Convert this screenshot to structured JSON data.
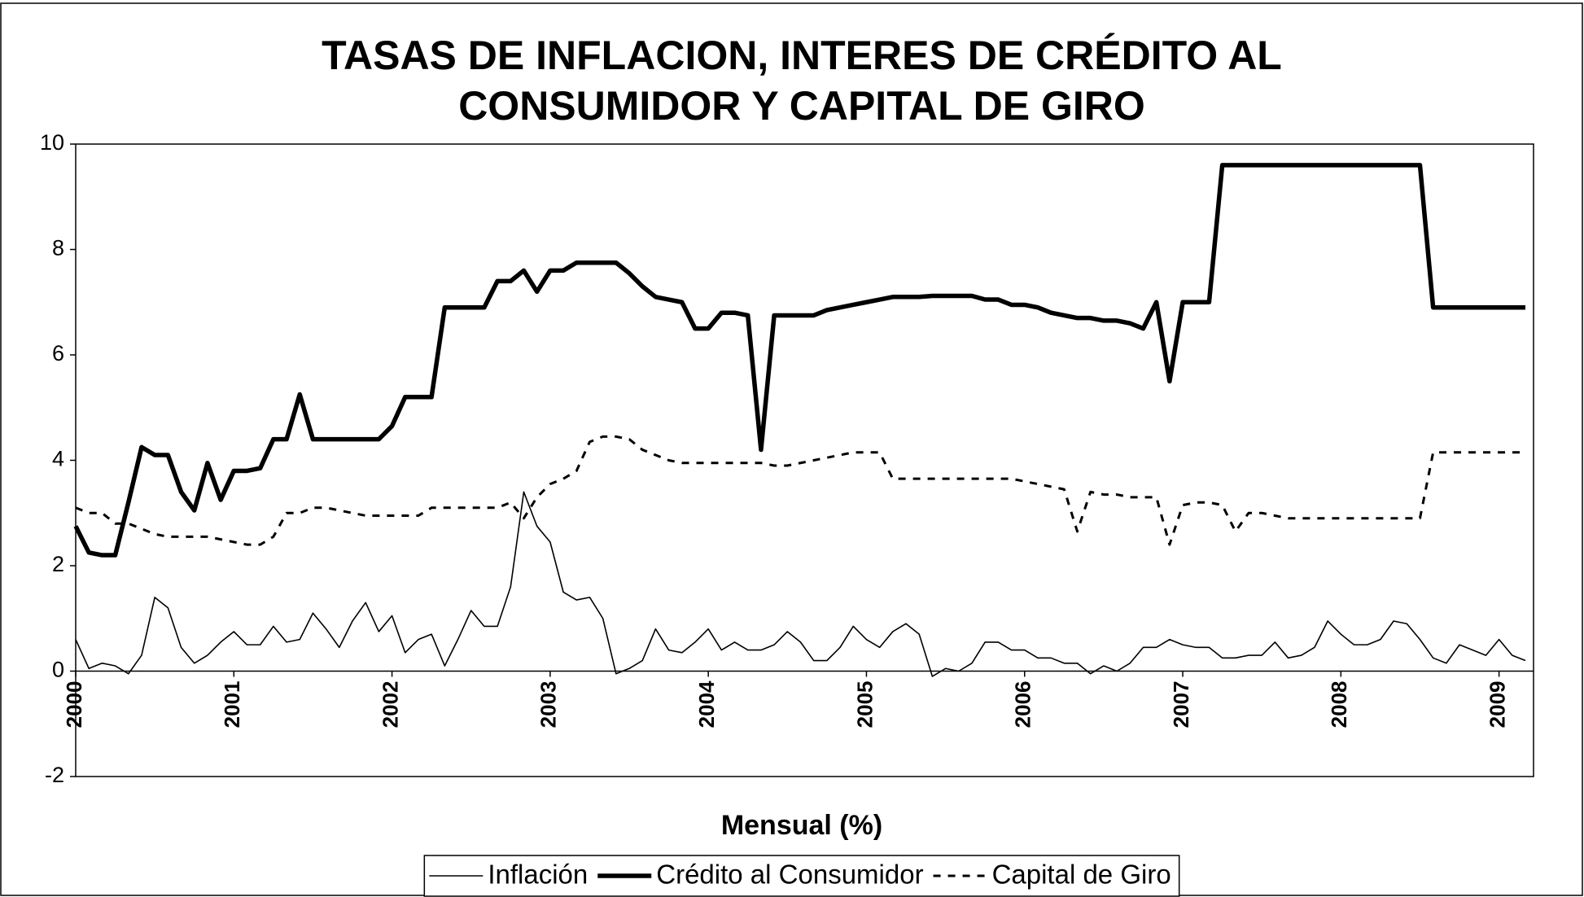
{
  "chart_data": {
    "type": "line",
    "title": [
      "TASAS DE INFLACION, INTERES DE CRÉDITO AL",
      "CONSUMIDOR Y CAPITAL DE GIRO"
    ],
    "xlabel": "Mensual (%)",
    "categories": [
      "2000",
      null,
      null,
      null,
      null,
      null,
      null,
      null,
      null,
      null,
      null,
      null,
      "2001",
      null,
      null,
      null,
      null,
      null,
      null,
      null,
      null,
      null,
      null,
      null,
      "2002",
      null,
      null,
      null,
      null,
      null,
      null,
      null,
      null,
      null,
      null,
      null,
      "2003",
      null,
      null,
      null,
      null,
      null,
      null,
      null,
      null,
      null,
      null,
      null,
      "2004",
      null,
      null,
      null,
      null,
      null,
      null,
      null,
      null,
      null,
      null,
      null,
      "2005",
      null,
      null,
      null,
      null,
      null,
      null,
      null,
      null,
      null,
      null,
      null,
      "2006",
      null,
      null,
      null,
      null,
      null,
      null,
      null,
      null,
      null,
      null,
      null,
      "2007",
      null,
      null,
      null,
      null,
      null,
      null,
      null,
      null,
      null,
      null,
      null,
      "2008",
      null,
      null,
      null,
      null,
      null,
      null,
      null,
      null,
      null,
      null,
      null,
      "2009",
      null,
      null
    ],
    "ylim": [
      -2,
      10
    ],
    "yticks": [
      -2,
      0,
      2,
      4,
      6,
      8,
      10
    ],
    "grid": false,
    "legend": "bottom",
    "series": [
      {
        "name": "Inflación",
        "color": "#000000",
        "style": "thin",
        "values": [
          0.6,
          0.05,
          0.15,
          0.1,
          -0.05,
          0.3,
          1.4,
          1.2,
          0.45,
          0.15,
          0.3,
          0.55,
          0.75,
          0.5,
          0.5,
          0.85,
          0.55,
          0.6,
          1.1,
          0.8,
          0.45,
          0.95,
          1.3,
          0.75,
          1.05,
          0.35,
          0.6,
          0.7,
          0.1,
          0.6,
          1.15,
          0.85,
          0.85,
          1.6,
          3.4,
          2.75,
          2.45,
          1.5,
          1.35,
          1.4,
          1.0,
          -0.05,
          0.05,
          0.2,
          0.8,
          0.4,
          0.35,
          0.55,
          0.8,
          0.4,
          0.55,
          0.4,
          0.4,
          0.5,
          0.75,
          0.55,
          0.2,
          0.2,
          0.45,
          0.85,
          0.6,
          0.45,
          0.75,
          0.9,
          0.7,
          -0.1,
          0.05,
          0.0,
          0.15,
          0.55,
          0.55,
          0.4,
          0.4,
          0.25,
          0.25,
          0.15,
          0.15,
          -0.05,
          0.1,
          0.0,
          0.15,
          0.45,
          0.45,
          0.6,
          0.5,
          0.45,
          0.45,
          0.25,
          0.25,
          0.3,
          0.3,
          0.55,
          0.25,
          0.3,
          0.45,
          0.95,
          0.7,
          0.5,
          0.5,
          0.6,
          0.95,
          0.9,
          0.6,
          0.25,
          0.15,
          0.5,
          0.4,
          0.3,
          0.6,
          0.3,
          0.2
        ]
      },
      {
        "name": "Crédito al Consumidor",
        "color": "#000000",
        "style": "thick",
        "values": [
          2.75,
          2.25,
          2.2,
          2.2,
          3.2,
          4.25,
          4.1,
          4.1,
          3.4,
          3.05,
          3.95,
          3.25,
          3.8,
          3.8,
          3.85,
          4.4,
          4.4,
          5.25,
          4.4,
          4.4,
          4.4,
          4.4,
          4.4,
          4.4,
          4.65,
          5.2,
          5.2,
          5.2,
          6.9,
          6.9,
          6.9,
          6.9,
          7.4,
          7.4,
          7.6,
          7.2,
          7.6,
          7.6,
          7.75,
          7.75,
          7.75,
          7.75,
          7.55,
          7.3,
          7.1,
          7.05,
          7.0,
          6.5,
          6.5,
          6.8,
          6.8,
          6.75,
          4.2,
          6.75,
          6.75,
          6.75,
          6.75,
          6.85,
          6.9,
          6.95,
          7.0,
          7.05,
          7.1,
          7.1,
          7.1,
          7.12,
          7.12,
          7.12,
          7.12,
          7.05,
          7.05,
          6.95,
          6.95,
          6.9,
          6.8,
          6.75,
          6.7,
          6.7,
          6.65,
          6.65,
          6.6,
          6.5,
          7.0,
          5.5,
          7.0,
          7.0,
          7.0,
          9.6,
          9.6,
          9.6,
          9.6,
          9.6,
          9.6,
          9.6,
          9.6,
          9.6,
          9.6,
          9.6,
          9.6,
          9.6,
          9.6,
          9.6,
          9.6,
          6.9,
          6.9,
          6.9,
          6.9,
          6.9,
          6.9,
          6.9,
          6.9
        ]
      },
      {
        "name": "Capital de Giro",
        "color": "#000000",
        "style": "dashed",
        "values": [
          3.1,
          3.0,
          3.0,
          2.8,
          2.8,
          2.7,
          2.6,
          2.55,
          2.55,
          2.55,
          2.55,
          2.5,
          2.45,
          2.4,
          2.4,
          2.55,
          3.0,
          3.0,
          3.1,
          3.1,
          3.05,
          3.0,
          2.95,
          2.95,
          2.95,
          2.95,
          2.95,
          3.1,
          3.1,
          3.1,
          3.1,
          3.1,
          3.1,
          3.2,
          2.9,
          3.3,
          3.55,
          3.65,
          3.8,
          4.35,
          4.45,
          4.45,
          4.4,
          4.2,
          4.1,
          4.0,
          3.95,
          3.95,
          3.95,
          3.95,
          3.95,
          3.95,
          3.95,
          3.9,
          3.9,
          3.95,
          4.0,
          4.05,
          4.1,
          4.15,
          4.15,
          4.15,
          3.65,
          3.65,
          3.65,
          3.65,
          3.65,
          3.65,
          3.65,
          3.65,
          3.65,
          3.65,
          3.6,
          3.55,
          3.5,
          3.45,
          2.65,
          3.4,
          3.35,
          3.35,
          3.3,
          3.3,
          3.3,
          2.4,
          3.15,
          3.2,
          3.2,
          3.15,
          2.65,
          3.0,
          3.0,
          2.95,
          2.9,
          2.9,
          2.9,
          2.9,
          2.9,
          2.9,
          2.9,
          2.9,
          2.9,
          2.9,
          2.9,
          4.15,
          4.15,
          4.15,
          4.15,
          4.15,
          4.15,
          4.15,
          4.15
        ]
      }
    ]
  }
}
